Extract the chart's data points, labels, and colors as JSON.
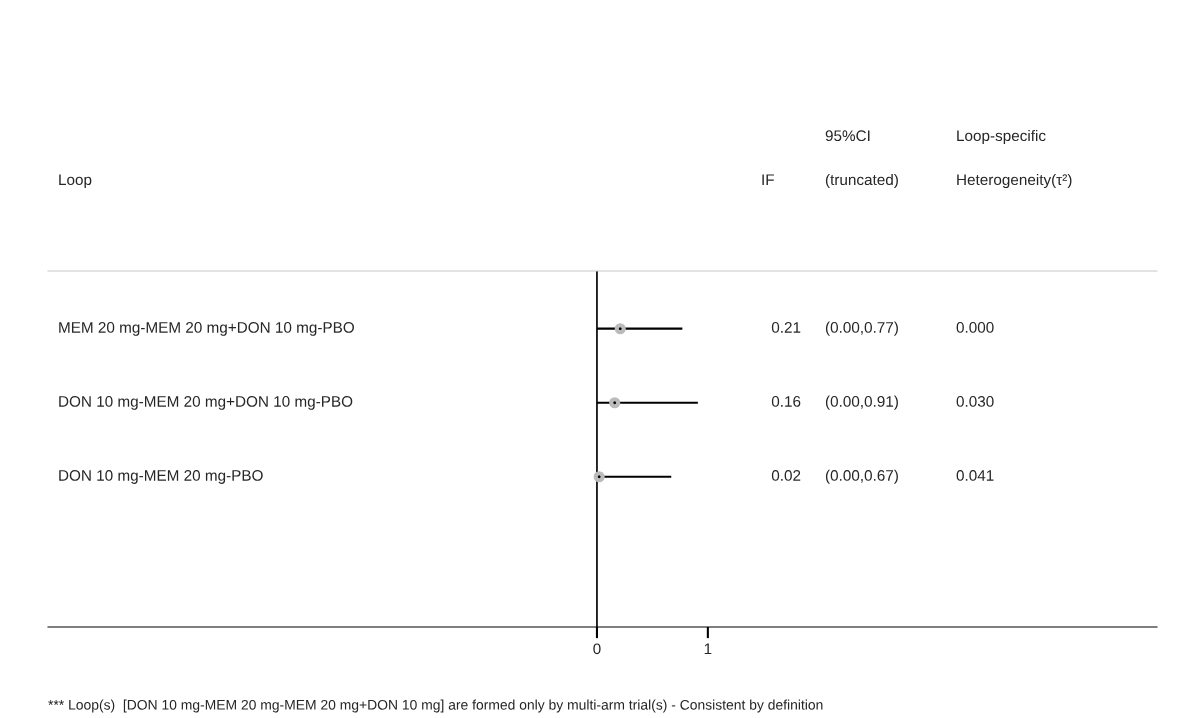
{
  "chart_data": {
    "type": "scatter",
    "orientation": "horizontal",
    "categories": [
      "MEM 20 mg-MEM 20 mg+DON 10 mg-PBO",
      "DON 10 mg-MEM 20 mg+DON 10 mg-PBO",
      "DON 10 mg-MEM 20 mg-PBO"
    ],
    "values": [
      0.21,
      0.16,
      0.02
    ],
    "errors": [
      [
        0.0,
        0.77
      ],
      [
        0.0,
        0.91
      ],
      [
        0.0,
        0.67
      ]
    ],
    "color": "#000000",
    "marker": "circle",
    "xlim": [
      -4.95,
      5.05
    ],
    "xticks": [
      0,
      1
    ],
    "ref_lines": [
      {
        "axis": "x",
        "value": 0
      }
    ],
    "grid": false,
    "annotations": [
      "Loop",
      "IF",
      "95%CI",
      "(truncated)",
      "Loop-specific",
      "Heterogeneity(τ²)",
      "0.21",
      "(0.00,0.77)",
      "0.000",
      "0.16",
      "(0.00,0.91)",
      "0.030",
      "0.02",
      "(0.00,0.67)",
      "0.041",
      "*** Loop(s)  [DON 10 mg-MEM 20 mg-MEM 20 mg+DON 10 mg] are formed only by multi-arm trial(s) - Consistent by definition"
    ]
  }
}
